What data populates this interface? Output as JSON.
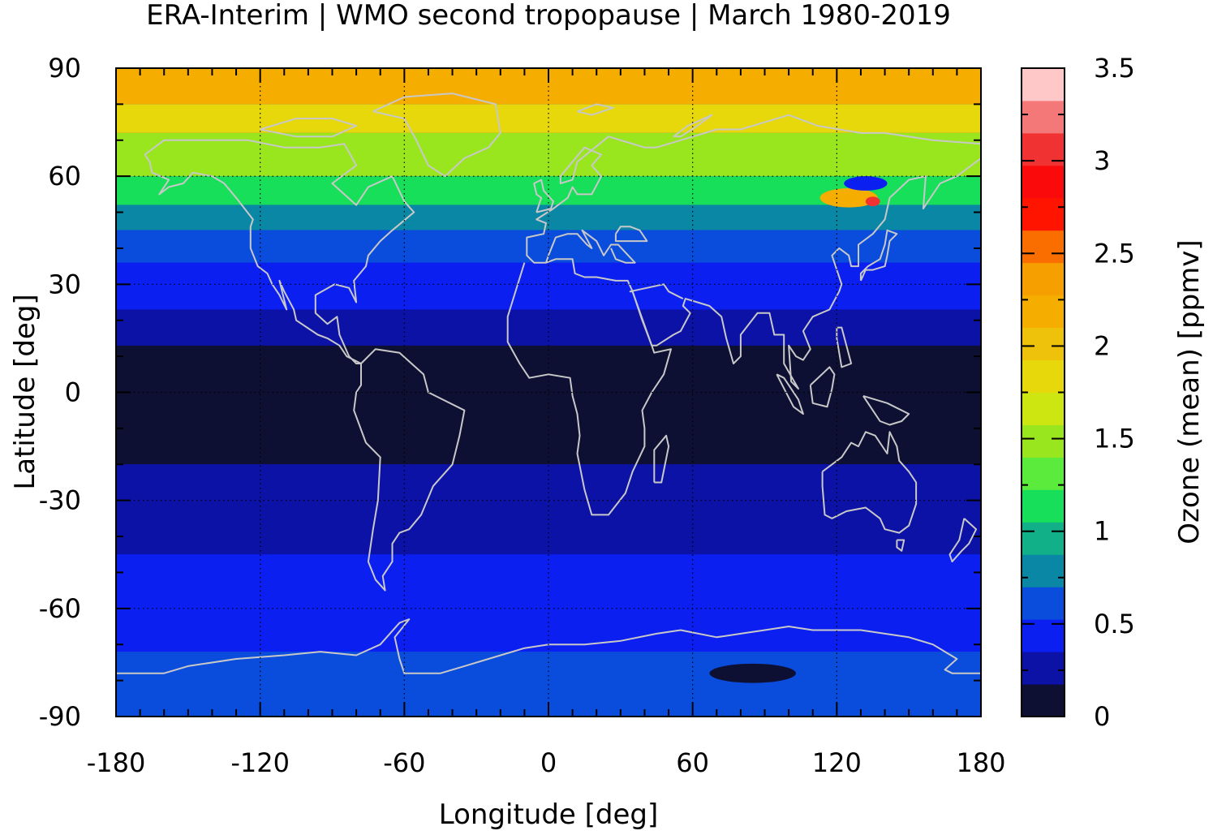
{
  "chart_data": {
    "type": "heatmap",
    "title": "ERA-Interim | WMO second tropopause | March 1980-2019",
    "xlabel": "Longitude [deg]",
    "ylabel": "Latitude [deg]",
    "colorbar_label": "Ozone (mean) [ppmv]",
    "xlim": [
      -180,
      180
    ],
    "ylim": [
      -90,
      90
    ],
    "x_ticks": [
      "-180",
      "-120",
      "-60",
      "0",
      "60",
      "120",
      "180"
    ],
    "y_ticks": [
      "90",
      "60",
      "30",
      "0",
      "-30",
      "-60",
      "-90"
    ],
    "grid": true,
    "colorbar": {
      "range": [
        0,
        3.5
      ],
      "ticks": [
        "0",
        "0.5",
        "1",
        "1.5",
        "2",
        "2.5",
        "3",
        "3.5"
      ],
      "bounds": [
        0,
        0.175,
        0.35,
        0.525,
        0.7,
        0.875,
        1.05,
        1.225,
        1.4,
        1.575,
        1.75,
        1.925,
        2.1,
        2.275,
        2.45,
        2.625,
        2.8,
        2.975,
        3.15,
        3.325,
        3.5
      ],
      "colors": [
        "#0d1033",
        "#0d12a6",
        "#0a1ff0",
        "#0a4ddc",
        "#0a87a5",
        "#12b088",
        "#18df5a",
        "#5aeb3c",
        "#9ae61e",
        "#cde612",
        "#e6d80a",
        "#eec10a",
        "#f5ad00",
        "#f5a000",
        "#fa6e00",
        "#ff1400",
        "#fa0a0a",
        "#f03232",
        "#f57878",
        "#ffc8c8"
      ]
    },
    "latitude_bands": [
      {
        "lat": [
          80,
          90
        ],
        "ozone": 2.1
      },
      {
        "lat": [
          72,
          80
        ],
        "ozone": 1.9
      },
      {
        "lat": [
          60,
          72
        ],
        "ozone": 1.5
      },
      {
        "lat": [
          52,
          60
        ],
        "ozone": 1.2
      },
      {
        "lat": [
          45,
          52
        ],
        "ozone": 0.85
      },
      {
        "lat": [
          36,
          45
        ],
        "ozone": 0.6
      },
      {
        "lat": [
          23,
          36
        ],
        "ozone": 0.45
      },
      {
        "lat": [
          13,
          23
        ],
        "ozone": 0.3
      },
      {
        "lat": [
          -20,
          13
        ],
        "ozone": 0.1
      },
      {
        "lat": [
          -45,
          -20
        ],
        "ozone": 0.3
      },
      {
        "lat": [
          -60,
          -45
        ],
        "ozone": 0.45
      },
      {
        "lat": [
          -72,
          -60
        ],
        "ozone": 0.5
      },
      {
        "lat": [
          -90,
          -72
        ],
        "ozone": 0.6
      }
    ],
    "features": [
      {
        "label": "East Asia maximum",
        "lon": 135,
        "lat": 53,
        "ozone": 3.1
      },
      {
        "label": "East Asia high region",
        "lon": 125,
        "lat": 54,
        "ozone": 2.1
      },
      {
        "label": "Siberian minimum",
        "lon": 132,
        "lat": 58,
        "ozone": 0.4
      },
      {
        "label": "East Antarctic minimum",
        "lon": 85,
        "lat": -78,
        "ozone": 0.1
      }
    ]
  }
}
